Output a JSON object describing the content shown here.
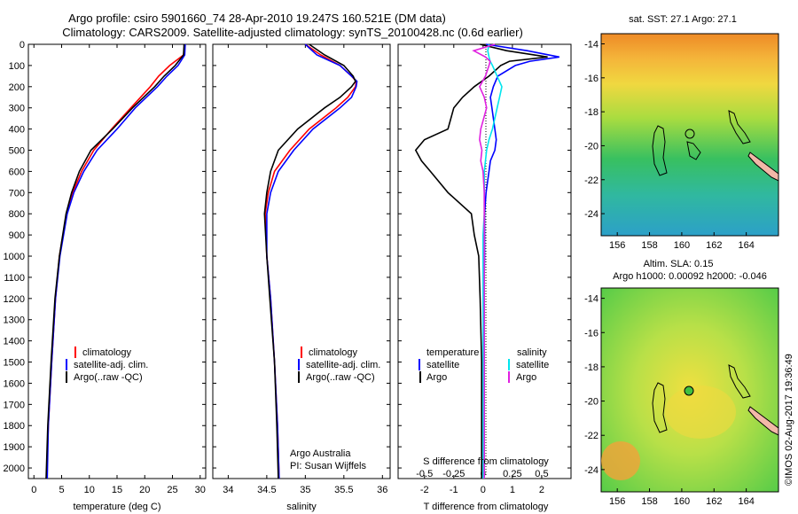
{
  "header": {
    "line1": "Argo profile: csiro 5901660_74 28-Apr-2010 19.247S 160.521E (DM data)",
    "line2": "Climatology: CARS2009. Satellite-adjusted climatology: synTS_20100428.nc (0.6d earlier)"
  },
  "colors": {
    "climatology": "#ff0000",
    "satellite": "#0000ff",
    "argo": "#000000",
    "sat_s": "#00e5ee",
    "argo_s": "#e020e0"
  },
  "legend": {
    "climatology": "climatology",
    "satellite": "satellite-adj. clim.",
    "argo": "Argo(..raw -QC)"
  },
  "diff_legend": {
    "temp_header": "temperature",
    "sal_header": "salinity",
    "satellite": "satellite",
    "argo": "Argo"
  },
  "credits": {
    "line1": "Argo Australia",
    "line2": "PI: Susan Wijffels"
  },
  "maps": {
    "top_title": "sat. SST: 27.1  Argo: 27.1",
    "bottom_title1": "Altim. SLA: 0.15",
    "bottom_title2": "Argo h1000: 0.00092 h2000: -0.046",
    "stamp": "©IMOS 02-Aug-2017 19:36:49",
    "lon_ticks": [
      "156",
      "158",
      "160",
      "162",
      "164"
    ],
    "lat_ticks": [
      "-14",
      "-16",
      "-18",
      "-20",
      "-22",
      "-24"
    ]
  },
  "chart_data": [
    {
      "type": "line",
      "title": "",
      "xlabel": "temperature (deg C)",
      "ylabel": "",
      "xlim": [
        -1,
        31
      ],
      "ylim": [
        2050,
        0
      ],
      "xticks": [
        "0",
        "5",
        "10",
        "15",
        "20",
        "25",
        "30"
      ],
      "yticks": [
        "0",
        "100",
        "200",
        "300",
        "400",
        "500",
        "600",
        "700",
        "800",
        "900",
        "1000",
        "1100",
        "1200",
        "1300",
        "1400",
        "1500",
        "1600",
        "1700",
        "1800",
        "1900",
        "2000"
      ],
      "y": [
        0,
        50,
        100,
        150,
        200,
        300,
        400,
        500,
        600,
        700,
        800,
        1000,
        1200,
        1500,
        1800,
        2050
      ],
      "series": [
        {
          "name": "climatology",
          "color": "climatology",
          "values": [
            27.2,
            27.0,
            24.5,
            22.5,
            21.0,
            17.5,
            14.0,
            10.8,
            8.6,
            7.0,
            5.9,
            4.6,
            3.9,
            3.2,
            2.6,
            2.3
          ]
        },
        {
          "name": "satellite-adj. clim.",
          "color": "satellite",
          "values": [
            27.3,
            27.2,
            26.0,
            24.0,
            22.3,
            18.3,
            15.0,
            11.4,
            9.0,
            7.2,
            6.0,
            4.7,
            3.9,
            3.2,
            2.6,
            2.4
          ]
        },
        {
          "name": "Argo(..raw -QC)",
          "color": "argo",
          "values": [
            27.1,
            27.0,
            25.5,
            23.5,
            21.8,
            17.8,
            14.2,
            10.3,
            8.2,
            6.8,
            5.8,
            4.6,
            3.8,
            3.1,
            2.5,
            2.2
          ]
        }
      ]
    },
    {
      "type": "line",
      "xlabel": "salinity",
      "xlim": [
        33.8,
        36.1
      ],
      "ylim": [
        2050,
        0
      ],
      "xticks": [
        "34",
        "34.5",
        "35",
        "35.5",
        "36"
      ],
      "y": [
        0,
        50,
        100,
        150,
        175,
        200,
        250,
        300,
        400,
        500,
        600,
        700,
        800,
        1000,
        1200,
        1500,
        1800,
        2050
      ],
      "series": [
        {
          "name": "climatology",
          "color": "climatology",
          "values": [
            35.0,
            35.2,
            35.45,
            35.6,
            35.66,
            35.65,
            35.55,
            35.4,
            35.05,
            34.8,
            34.6,
            34.52,
            34.48,
            34.5,
            34.55,
            34.6,
            34.64,
            34.66
          ]
        },
        {
          "name": "satellite-adj. clim.",
          "color": "satellite",
          "values": [
            35.0,
            35.15,
            35.45,
            35.6,
            35.67,
            35.66,
            35.6,
            35.45,
            35.1,
            34.85,
            34.65,
            34.55,
            34.5,
            34.5,
            34.55,
            34.6,
            34.64,
            34.66
          ]
        },
        {
          "name": "Argo(..raw -QC)",
          "color": "argo",
          "values": [
            35.05,
            35.25,
            35.5,
            35.62,
            35.65,
            35.6,
            35.45,
            35.25,
            34.9,
            34.65,
            34.55,
            34.5,
            34.47,
            34.5,
            34.54,
            34.6,
            34.63,
            34.65
          ]
        }
      ]
    },
    {
      "type": "line",
      "xlabel": "T difference from climatology",
      "xlabel2": "S difference from climatology",
      "xlim": [
        -2.9,
        3.0
      ],
      "ylim": [
        2050,
        0
      ],
      "xticks": [
        "-2",
        "-1",
        "0",
        "1",
        "2"
      ],
      "xticks_s": [
        "-0.5",
        "-0.25",
        "0",
        "0.25",
        "0.5"
      ],
      "y": [
        0,
        30,
        60,
        80,
        100,
        150,
        200,
        250,
        300,
        400,
        450,
        500,
        550,
        600,
        700,
        800,
        900,
        1000,
        1200,
        1500,
        1800,
        2050
      ],
      "series": [
        {
          "name": "temperature satellite",
          "color": "satellite",
          "values": [
            0.1,
            1.5,
            2.6,
            1.6,
            1.1,
            0.5,
            0.35,
            0.25,
            0.3,
            0.4,
            0.45,
            0.4,
            0.25,
            0.2,
            0.1,
            0.05,
            0.05,
            0.05,
            0.03,
            0.03,
            0.02,
            0.02
          ]
        },
        {
          "name": "temperature Argo",
          "color": "argo",
          "values": [
            -0.1,
            0.8,
            2.2,
            0.9,
            0.6,
            0.2,
            -0.3,
            -0.7,
            -1.0,
            -1.2,
            -2.0,
            -2.3,
            -2.1,
            -1.8,
            -1.2,
            -0.4,
            -0.3,
            -0.15,
            -0.1,
            -0.05,
            -0.05,
            -0.05
          ]
        },
        {
          "name": "salinity satellite",
          "color": "sat_s",
          "values": [
            0.05,
            0.04,
            0.05,
            0.06,
            0.08,
            0.12,
            0.16,
            0.14,
            0.12,
            0.08,
            0.05,
            0.03,
            0.02,
            0.01,
            0.01,
            0.01,
            0.0,
            0.0,
            0.0,
            0.0,
            0.0,
            0.0
          ]
        },
        {
          "name": "salinity Argo",
          "color": "argo_s",
          "values": [
            0.1,
            -0.08,
            0.02,
            0.06,
            0.05,
            0.02,
            -0.03,
            0.01,
            0.03,
            -0.02,
            -0.03,
            -0.01,
            -0.02,
            0.0,
            0.01,
            0.01,
            0.01,
            0.01,
            0.01,
            0.01,
            0.01,
            0.01
          ]
        }
      ]
    }
  ]
}
